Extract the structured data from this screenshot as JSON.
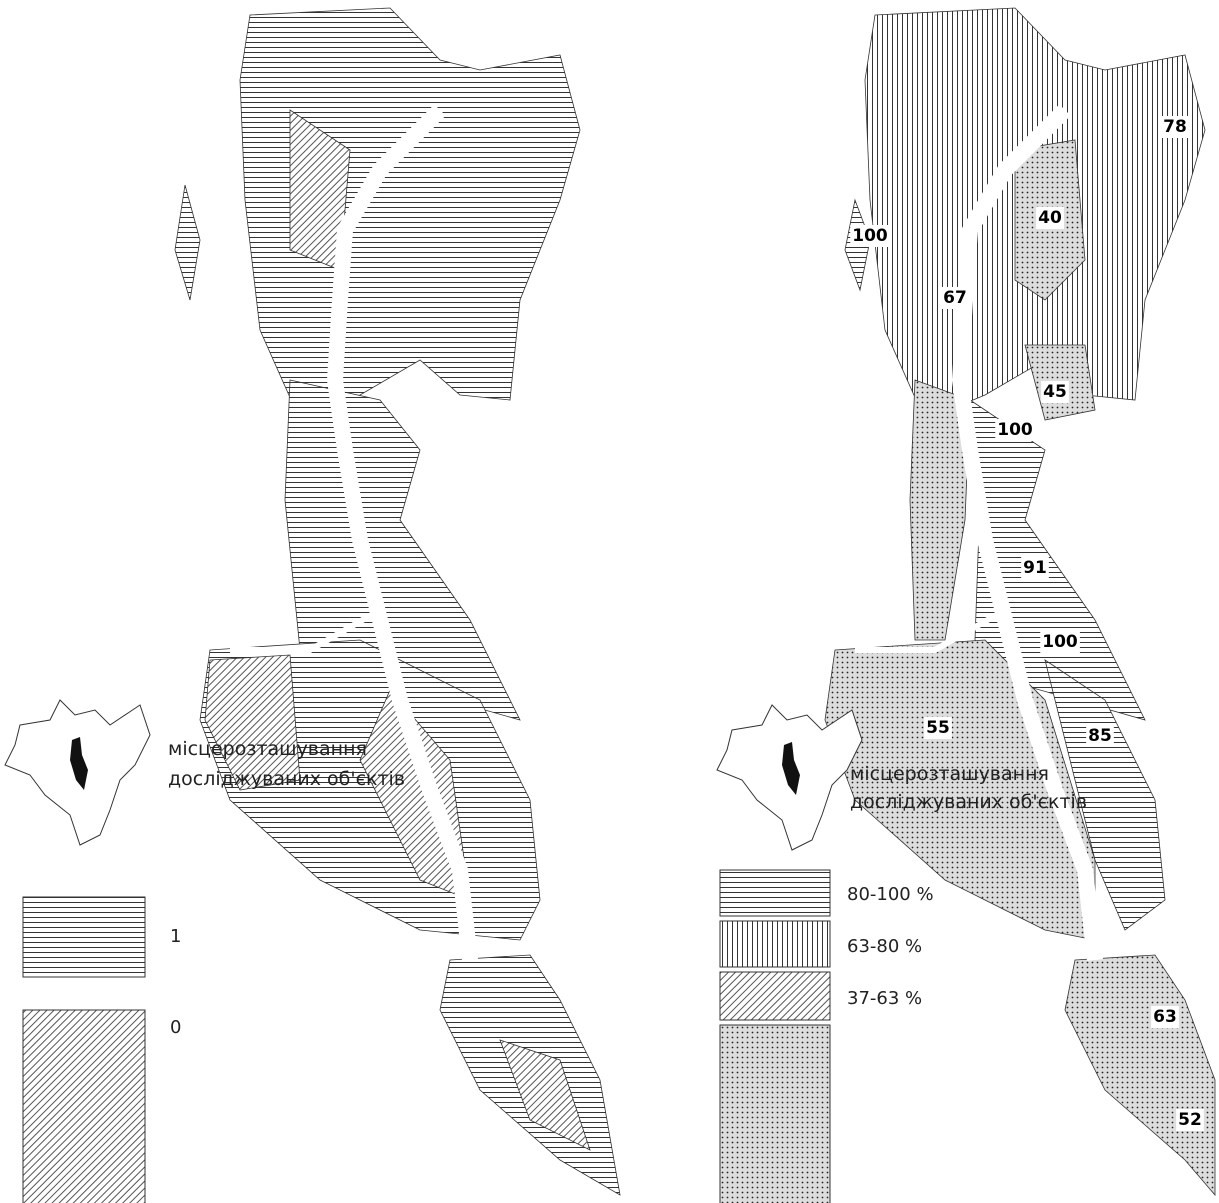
{
  "maps": [
    {
      "caption": [
        "місцерозташування",
        "досліджуваних об'єктів"
      ],
      "legend": [
        "1",
        "0"
      ]
    },
    {
      "caption": [
        "місцерозташування",
        "досліджуваних об'єктів"
      ],
      "legend": [
        "80-100 %",
        "63-80 %",
        "37-63 %"
      ],
      "labels": [
        "78",
        "40",
        "100",
        "67",
        "45",
        "100",
        "91",
        "100",
        "55",
        "85",
        "63",
        "52"
      ]
    }
  ]
}
